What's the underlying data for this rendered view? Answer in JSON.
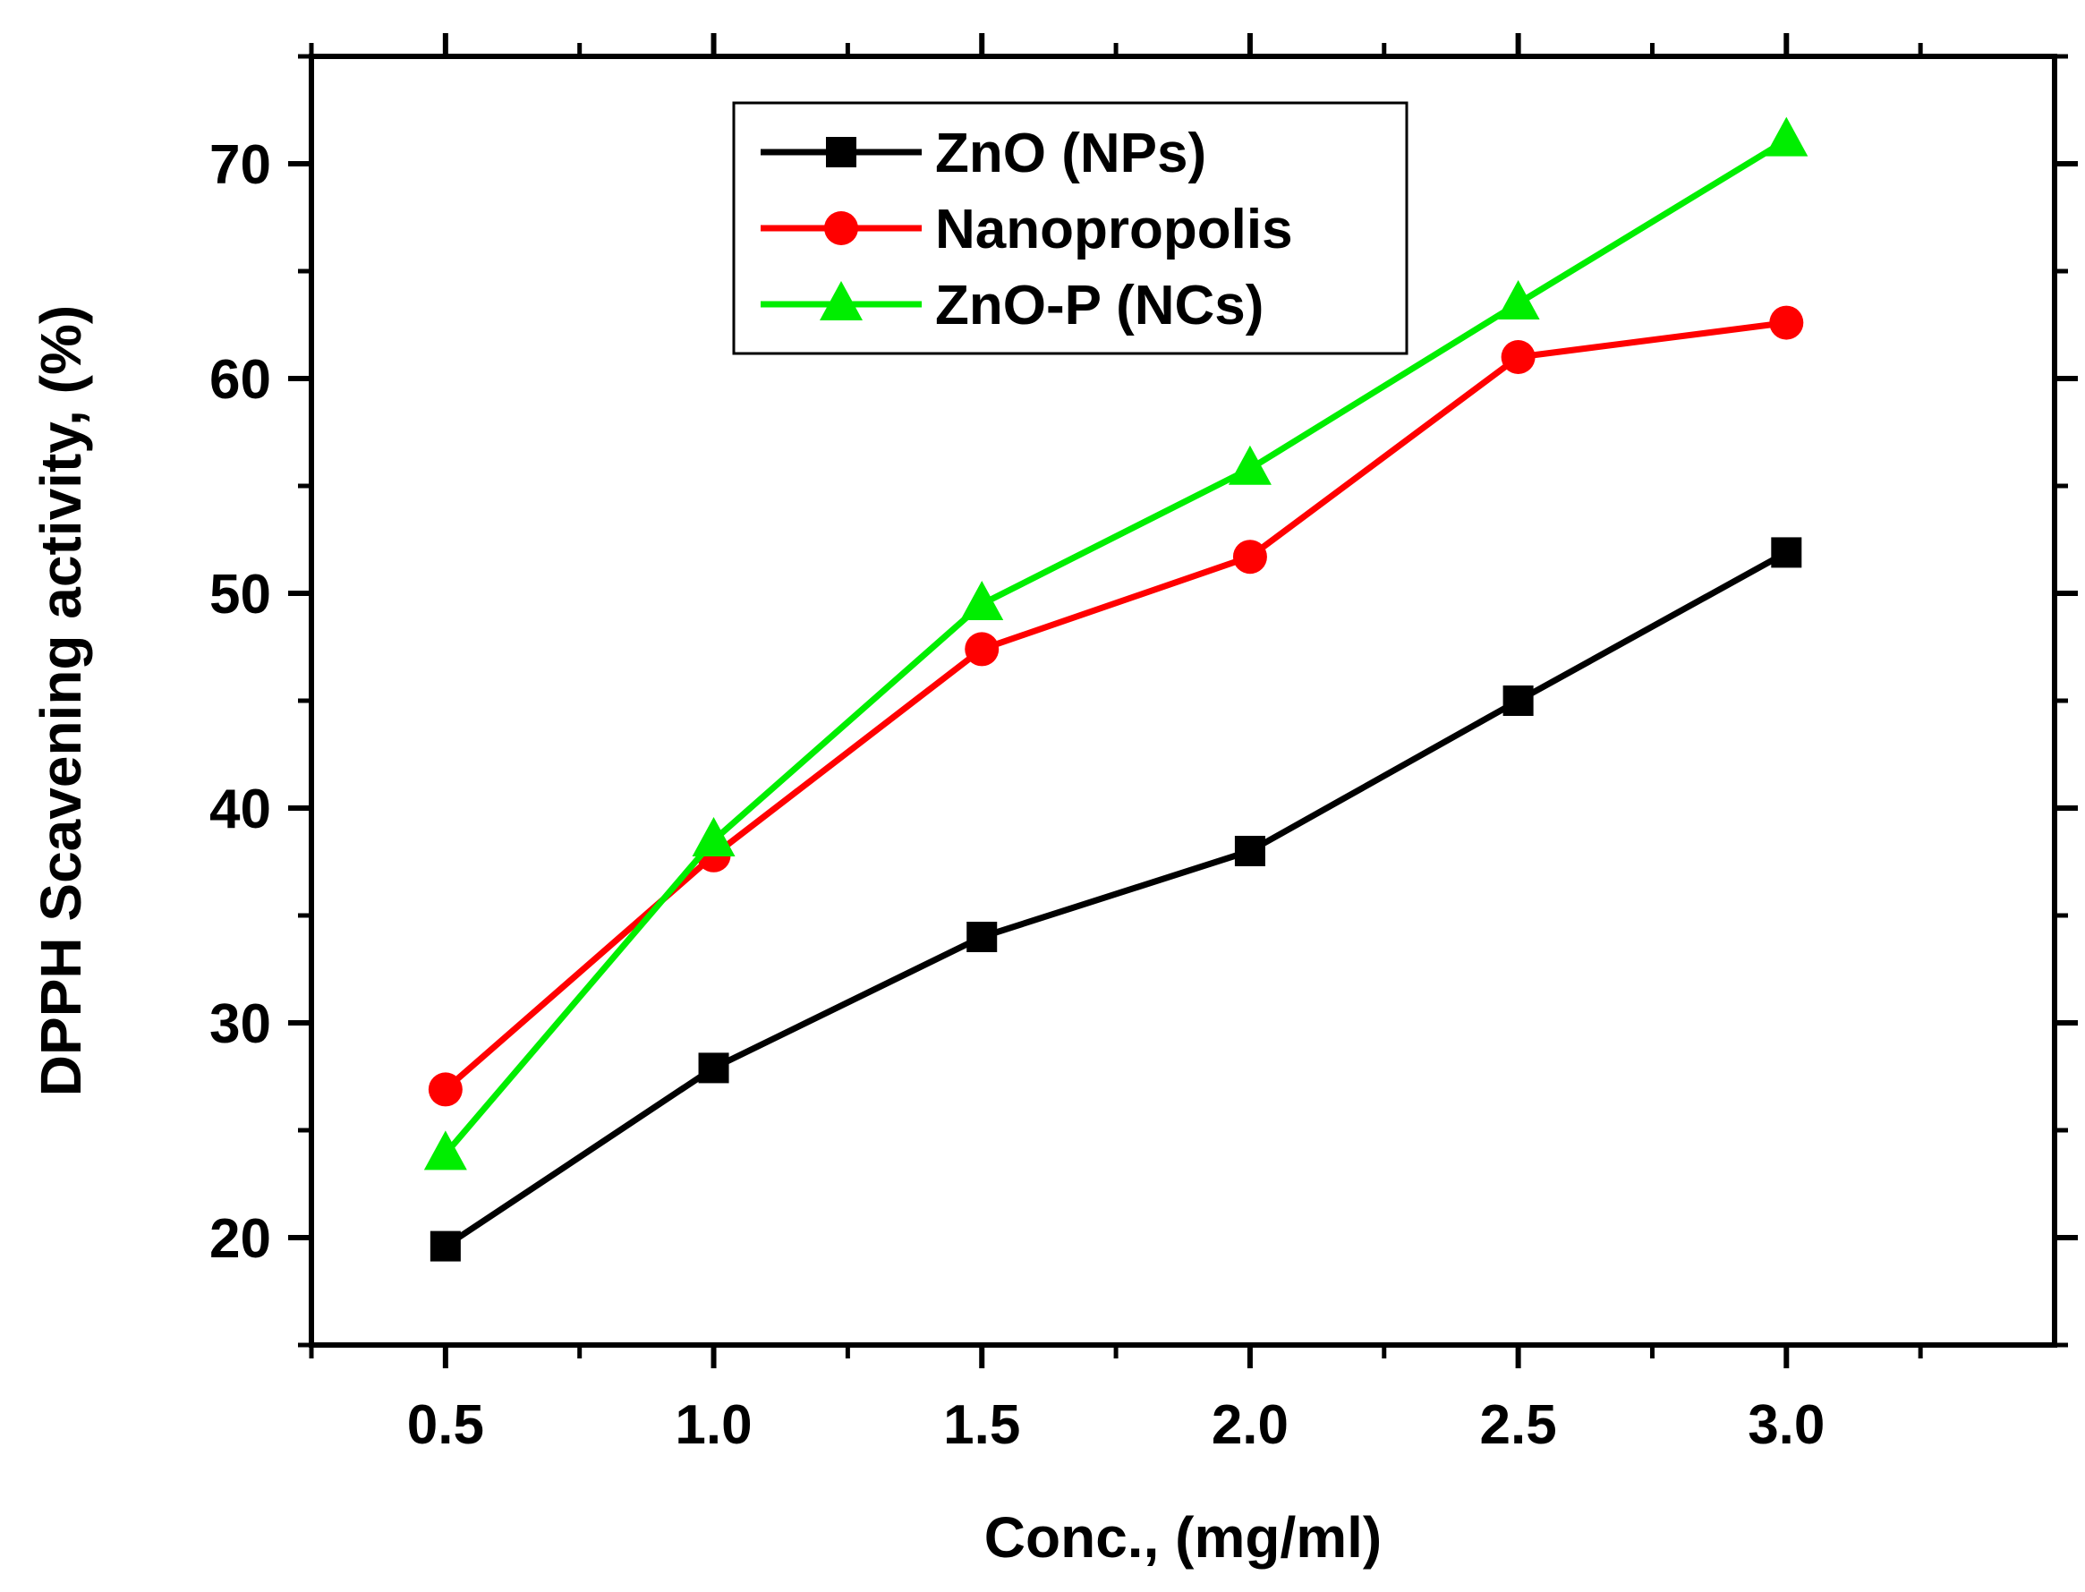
{
  "chart_data": {
    "type": "line",
    "title": "",
    "xlabel": "Conc., (mg/ml)",
    "ylabel": "DPPH Scavening activity, (%)",
    "x": [
      0.5,
      1.0,
      1.5,
      2.0,
      2.5,
      3.0
    ],
    "xticks": [
      "0.5",
      "1.0",
      "1.5",
      "2.0",
      "2.5",
      "3.0"
    ],
    "yticks": [
      "20",
      "30",
      "40",
      "50",
      "60",
      "70"
    ],
    "xlim": [
      0.25,
      3.5
    ],
    "ylim": [
      15,
      75
    ],
    "grid": false,
    "legend_position": "top-center",
    "series": [
      {
        "name": "ZnO (NPs)",
        "color": "#000000",
        "marker": "square",
        "values": [
          19.6,
          27.9,
          34.0,
          38.0,
          45.0,
          51.9
        ]
      },
      {
        "name": "Nanopropolis",
        "color": "#ff0000",
        "marker": "circle",
        "values": [
          26.9,
          37.8,
          47.4,
          51.7,
          61.0,
          62.6
        ]
      },
      {
        "name": "ZnO-P (NCs)",
        "color": "#00ee00",
        "marker": "triangle",
        "values": [
          23.9,
          38.5,
          49.5,
          55.8,
          63.5,
          71.1
        ]
      }
    ]
  }
}
